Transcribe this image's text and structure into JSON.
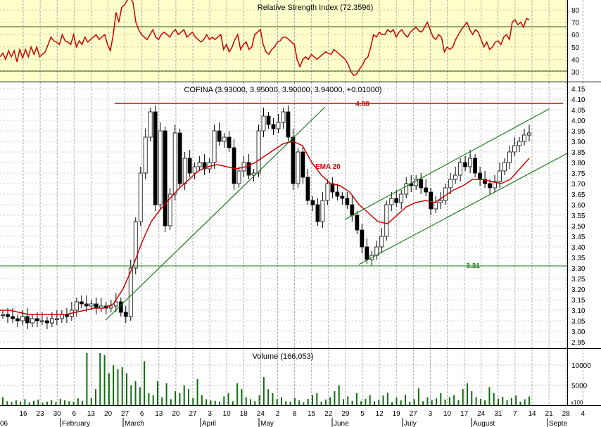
{
  "rsi": {
    "title": "Relative Strength Index (72.3596)",
    "ticks": [
      30,
      40,
      50,
      60,
      70,
      80
    ],
    "levels": [
      30,
      70
    ],
    "range": [
      22,
      88
    ],
    "values": [
      42,
      45,
      40,
      47,
      42,
      47,
      38,
      48,
      41,
      48,
      42,
      50,
      44,
      50,
      42,
      44,
      46,
      52,
      58,
      55,
      54,
      52,
      60,
      55,
      54,
      52,
      60,
      50,
      55,
      52,
      58,
      54,
      56,
      58,
      60,
      56,
      58,
      60,
      52,
      47,
      60,
      78,
      70,
      82,
      84,
      88,
      90,
      86,
      70,
      64,
      60,
      58,
      56,
      60,
      64,
      58,
      56,
      60,
      62,
      60,
      58,
      62,
      64,
      60,
      62,
      64,
      58,
      60,
      62,
      58,
      56,
      54,
      56,
      60,
      56,
      58,
      56,
      58,
      60,
      48,
      52,
      46,
      50,
      56,
      60,
      48,
      52,
      54,
      48,
      50,
      60,
      62,
      64,
      52,
      46,
      44,
      48,
      50,
      54,
      55,
      58,
      58,
      56,
      54,
      52,
      40,
      34,
      40,
      42,
      40,
      44,
      42,
      40,
      42,
      44,
      46,
      45,
      44,
      48,
      46,
      44,
      42,
      40,
      36,
      30,
      27,
      28,
      32,
      35,
      40,
      42,
      50,
      60,
      58,
      62,
      60,
      60,
      64,
      62,
      64,
      58,
      62,
      64,
      60,
      58,
      62,
      64,
      66,
      63,
      62,
      66,
      70,
      64,
      58,
      56,
      60,
      58,
      46,
      50,
      48,
      50,
      56,
      60,
      64,
      67,
      70,
      64,
      60,
      64,
      62,
      56,
      50,
      54,
      48,
      50,
      54,
      55,
      52,
      58,
      60,
      56,
      70,
      72,
      68,
      70,
      66,
      73,
      72
    ],
    "end_value": 72.3596
  },
  "price": {
    "title": "COFINA (3.93000, 3.95000, 3.90000, 3.94000, +0.01000)",
    "ticks": [
      "2.95",
      "3.00",
      "3.05",
      "3.10",
      "3.15",
      "3.20",
      "3.25",
      "3.30",
      "3.35",
      "3.40",
      "3.45",
      "3.50",
      "3.55",
      "3.60",
      "3.65",
      "3.70",
      "3.75",
      "3.80",
      "3.85",
      "3.90",
      "3.95",
      "4.00",
      "4.05",
      "4.10",
      "4.15"
    ],
    "range": [
      2.92,
      4.18
    ],
    "resistance": {
      "value": 4.08,
      "label": "4.08"
    },
    "support": {
      "value": 3.31,
      "label": "3.31"
    },
    "ema_label": "EMA 20"
  },
  "volume": {
    "title": "Volume (166,053)",
    "ticks": [
      "5000",
      "10000"
    ],
    "multiplier": "x100",
    "max": 13000
  },
  "axis": {
    "dates": [
      "16",
      "23",
      "30",
      "6",
      "13",
      "20",
      "27",
      "6",
      "13",
      "20",
      "27",
      "3",
      "10",
      "18",
      "24",
      "2",
      "8",
      "15",
      "22",
      "29",
      "5",
      "12",
      "19",
      "27",
      "3",
      "10",
      "17",
      "24",
      "31",
      "7",
      "14",
      "21",
      "28",
      "4"
    ],
    "months": [
      "06",
      "February",
      "March",
      "April",
      "May",
      "June",
      "July",
      "August",
      "Septe"
    ]
  },
  "chart_data": {
    "type": "candlestick",
    "security": "COFINA",
    "last": {
      "open": 3.93,
      "high": 3.95,
      "low": 3.9,
      "close": 3.94,
      "change": 0.01
    },
    "ylim": [
      2.92,
      4.18
    ],
    "series": [
      {
        "name": "close",
        "values": [
          3.08,
          3.07,
          3.06,
          3.05,
          3.07,
          3.04,
          3.06,
          3.05,
          3.05,
          3.04,
          3.06,
          3.06,
          3.08,
          3.07,
          3.1,
          3.14,
          3.13,
          3.12,
          3.13,
          3.11,
          3.12,
          3.11,
          3.12,
          3.14,
          3.09,
          3.07,
          3.3,
          3.52,
          3.75,
          3.92,
          4.04,
          3.6,
          3.95,
          3.5,
          3.65,
          3.94,
          3.7,
          3.82,
          3.75,
          3.78,
          3.8,
          3.77,
          3.8,
          3.95,
          3.9,
          3.92,
          3.87,
          3.7,
          3.76,
          3.8,
          3.74,
          3.75,
          3.95,
          4.02,
          3.98,
          3.96,
          3.99,
          4.04,
          3.92,
          3.7,
          3.85,
          3.73,
          3.62,
          3.6,
          3.52,
          3.62,
          3.7,
          3.66,
          3.64,
          3.63,
          3.6,
          3.55,
          3.48,
          3.4,
          3.34,
          3.36,
          3.4,
          3.45,
          3.6,
          3.63,
          3.61,
          3.65,
          3.7,
          3.69,
          3.72,
          3.68,
          3.66,
          3.58,
          3.61,
          3.62,
          3.68,
          3.72,
          3.74,
          3.8,
          3.78,
          3.82,
          3.75,
          3.72,
          3.7,
          3.68,
          3.71,
          3.76,
          3.8,
          3.85,
          3.88,
          3.9,
          3.93,
          3.94
        ]
      },
      {
        "name": "EMA 20",
        "values": [
          3.1,
          3.1,
          3.09,
          3.08,
          3.08,
          3.08,
          3.08,
          3.08,
          3.09,
          3.1,
          3.11,
          3.11,
          3.13,
          3.2,
          3.3,
          3.42,
          3.52,
          3.58,
          3.63,
          3.68,
          3.72,
          3.76,
          3.78,
          3.79,
          3.78,
          3.77,
          3.78,
          3.8,
          3.83,
          3.86,
          3.89,
          3.9,
          3.88,
          3.8,
          3.74,
          3.7,
          3.69,
          3.66,
          3.6,
          3.56,
          3.52,
          3.51,
          3.55,
          3.59,
          3.61,
          3.62,
          3.61,
          3.64,
          3.67,
          3.69,
          3.72,
          3.72,
          3.71,
          3.7,
          3.72,
          3.77,
          3.82
        ]
      },
      {
        "name": "volume",
        "values": [
          2000,
          1000,
          800,
          1200,
          900,
          1500,
          700,
          1100,
          1400,
          600,
          900,
          1300,
          800,
          1600,
          1200,
          1000,
          900,
          1700,
          1100,
          13000,
          1800,
          4000,
          13000,
          12500,
          8000,
          10000,
          9000,
          9500,
          8000,
          5000,
          6000,
          4500,
          11000,
          3000,
          2500,
          6000,
          2000,
          5500,
          1500,
          3500,
          3000,
          5000,
          4000,
          1800,
          6500,
          2500,
          1500,
          1200,
          1100,
          900,
          2200,
          3000,
          1000,
          5500,
          4000,
          2000,
          1500,
          1000,
          2500,
          7000,
          4000,
          3000,
          1500,
          2000,
          1000,
          900,
          1800,
          1200,
          700,
          1600,
          2500,
          3000,
          900,
          1400,
          2000,
          3500,
          5000,
          1500,
          2200,
          1100,
          3000,
          1000,
          1600,
          2500,
          1000,
          1300,
          2400,
          3100,
          800,
          1900,
          1200,
          2600,
          900,
          1500,
          4200,
          1000,
          2000,
          1300,
          1700,
          3000,
          1400,
          2000,
          2500,
          1300,
          4000,
          5500,
          3500,
          2000,
          1600,
          1200,
          4500,
          3000,
          1600,
          2100,
          1200,
          1800,
          2400,
          900,
          1500,
          2200
        ]
      }
    ],
    "rsi": 72.3596,
    "volume_last": 166053,
    "levels": [
      {
        "name": "resistance",
        "value": 4.08
      },
      {
        "name": "support",
        "value": 3.31
      }
    ],
    "indicators": [
      "EMA 20",
      "Relative Strength Index"
    ]
  }
}
